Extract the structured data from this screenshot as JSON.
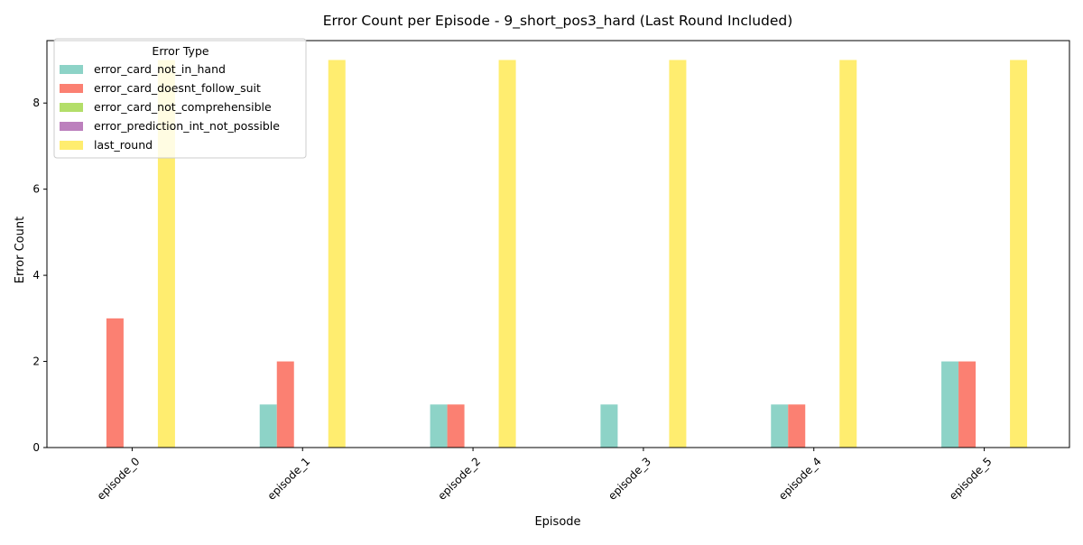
{
  "chart_data": {
    "type": "bar",
    "title": "Error Count per Episode - 9_short_pos3_hard (Last Round Included)",
    "xlabel": "Episode",
    "ylabel": "Error Count",
    "categories": [
      "episode_0",
      "episode_1",
      "episode_2",
      "episode_3",
      "episode_4",
      "episode_5"
    ],
    "ylim": [
      0,
      9.45
    ],
    "yticks": [
      0,
      2,
      4,
      6,
      8
    ],
    "grid": false,
    "legend": {
      "title": "Error Type",
      "placement": "top-left"
    },
    "series": [
      {
        "name": "error_card_not_in_hand",
        "color": "#8dd3c7",
        "values": [
          0,
          1,
          1,
          1,
          1,
          2
        ]
      },
      {
        "name": "error_card_doesnt_follow_suit",
        "color": "#fb8072",
        "values": [
          3,
          2,
          1,
          0,
          1,
          2
        ]
      },
      {
        "name": "error_card_not_comprehensible",
        "color": "#b3de69",
        "values": [
          0,
          0,
          0,
          0,
          0,
          0
        ]
      },
      {
        "name": "error_prediction_int_not_possible",
        "color": "#bc80bd",
        "values": [
          0,
          0,
          0,
          0,
          0,
          0
        ]
      },
      {
        "name": "last_round",
        "color": "#ffed6f",
        "values": [
          9,
          9,
          9,
          9,
          9,
          9
        ]
      }
    ]
  }
}
